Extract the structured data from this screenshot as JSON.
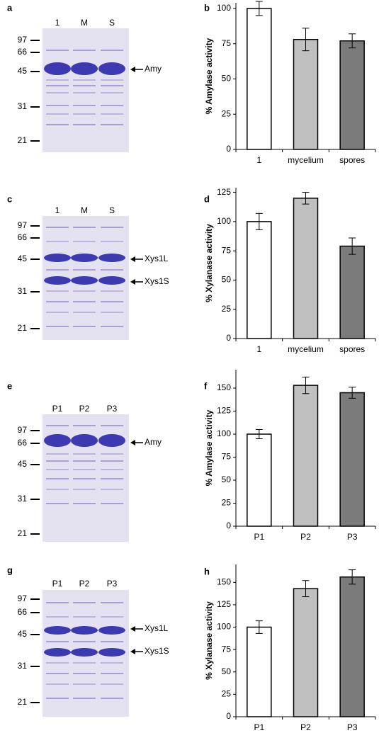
{
  "gels": [
    {
      "panel": "a",
      "lanes": [
        "1",
        "M",
        "S"
      ],
      "markers": [
        "97",
        "66",
        "45",
        "31",
        "21"
      ],
      "bands": [
        "Amy"
      ]
    },
    {
      "panel": "c",
      "lanes": [
        "1",
        "M",
        "S"
      ],
      "markers": [
        "97",
        "66",
        "45",
        "31",
        "21"
      ],
      "bands": [
        "Xys1L",
        "Xys1S"
      ]
    },
    {
      "panel": "e",
      "lanes": [
        "P1",
        "P2",
        "P3"
      ],
      "markers": [
        "97",
        "66",
        "45",
        "31",
        "21"
      ],
      "bands": [
        "Amy"
      ]
    },
    {
      "panel": "g",
      "lanes": [
        "P1",
        "P2",
        "P3"
      ],
      "markers": [
        "97",
        "66",
        "45",
        "31",
        "21"
      ],
      "bands": [
        "Xys1L",
        "Xys1S"
      ]
    }
  ],
  "chart_data": [
    {
      "type": "bar",
      "panel": "b",
      "y_label": "% Amylase activity",
      "categories": [
        "1",
        "mycelium",
        "spores"
      ],
      "values": [
        100,
        78,
        77
      ],
      "errors": [
        5,
        8,
        5
      ],
      "colors": [
        "#ffffff",
        "#c0c0c0",
        "#7b7b7b"
      ],
      "ylim": [
        0,
        104
      ],
      "yticks": [
        0,
        25,
        50,
        75,
        100
      ]
    },
    {
      "type": "bar",
      "panel": "d",
      "y_label": "% Xylanase activity",
      "categories": [
        "1",
        "mycelium",
        "spores"
      ],
      "values": [
        100,
        120,
        79
      ],
      "errors": [
        7,
        5,
        7
      ],
      "colors": [
        "#ffffff",
        "#c0c0c0",
        "#7b7b7b"
      ],
      "ylim": [
        0,
        129
      ],
      "yticks": [
        0,
        25,
        50,
        75,
        100,
        125
      ]
    },
    {
      "type": "bar",
      "panel": "f",
      "y_label": "% Amylase activity",
      "categories": [
        "P1",
        "P2",
        "P3"
      ],
      "values": [
        100,
        153,
        145
      ],
      "errors": [
        5,
        9,
        6
      ],
      "colors": [
        "#ffffff",
        "#c0c0c0",
        "#7b7b7b"
      ],
      "ylim": [
        0,
        170
      ],
      "yticks": [
        0,
        25,
        50,
        75,
        100,
        125,
        150
      ]
    },
    {
      "type": "bar",
      "panel": "h",
      "y_label": "% Xylanase activity",
      "categories": [
        "P1",
        "P2",
        "P3"
      ],
      "values": [
        100,
        143,
        156
      ],
      "errors": [
        7,
        9,
        8
      ],
      "colors": [
        "#ffffff",
        "#c0c0c0",
        "#7b7b7b"
      ],
      "ylim": [
        0,
        170
      ],
      "yticks": [
        0,
        25,
        50,
        75,
        100,
        125,
        150
      ]
    }
  ]
}
